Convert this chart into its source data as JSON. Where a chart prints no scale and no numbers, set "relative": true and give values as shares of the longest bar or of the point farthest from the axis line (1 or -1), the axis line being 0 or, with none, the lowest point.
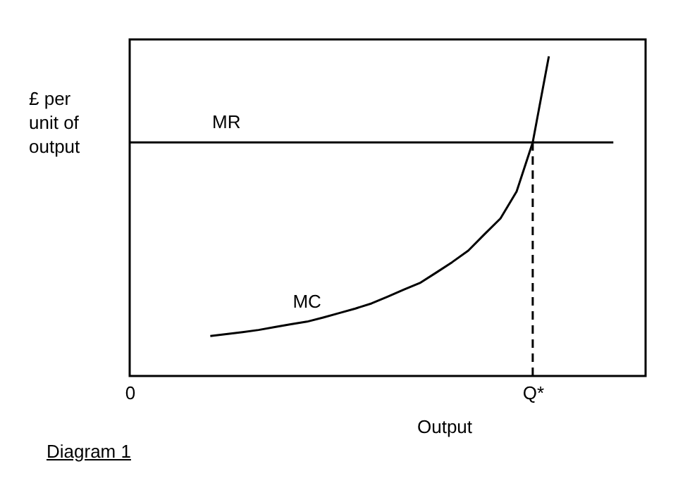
{
  "chart_data": {
    "type": "line",
    "relative": true,
    "xlabel": "Output",
    "ylabel": "£ per\nunit of\noutput",
    "annotations": [
      "Diagram 1"
    ],
    "categories": [
      "0",
      null,
      null,
      null,
      null,
      null,
      null,
      null,
      null,
      null,
      null,
      null,
      null,
      null,
      null,
      null,
      null,
      null,
      null,
      null,
      null,
      null,
      null,
      null,
      null,
      "Q*",
      null,
      null,
      null,
      null,
      null,
      null,
      null
    ],
    "series": [
      {
        "name": "MR",
        "color": "#000000",
        "values": [
          0.731,
          0.731,
          0.731,
          0.731,
          0.731,
          0.731,
          0.731,
          0.731,
          0.731,
          0.731,
          0.731,
          0.731,
          0.731,
          0.731,
          0.731,
          0.731,
          0.731,
          0.731,
          0.731,
          0.731,
          0.731,
          0.731,
          0.731,
          0.731,
          0.731,
          0.731,
          0.731,
          0.731,
          0.731,
          0.731,
          0.731,
          null,
          null
        ]
      },
      {
        "name": "MC",
        "color": "#000000",
        "values": [
          null,
          null,
          null,
          null,
          null,
          0.125,
          0.131,
          0.137,
          0.144,
          0.153,
          0.162,
          0.17,
          0.183,
          0.197,
          0.211,
          0.227,
          0.248,
          0.27,
          0.291,
          0.323,
          0.356,
          0.392,
          0.443,
          0.493,
          0.577,
          0.731,
          1,
          null,
          null,
          null,
          null,
          null,
          null
        ]
      },
      {
        "color": "#000000",
        "line_style": "dashed",
        "x": [
          "Q*",
          "Q*"
        ],
        "values": [
          0,
          0.731
        ]
      }
    ]
  }
}
